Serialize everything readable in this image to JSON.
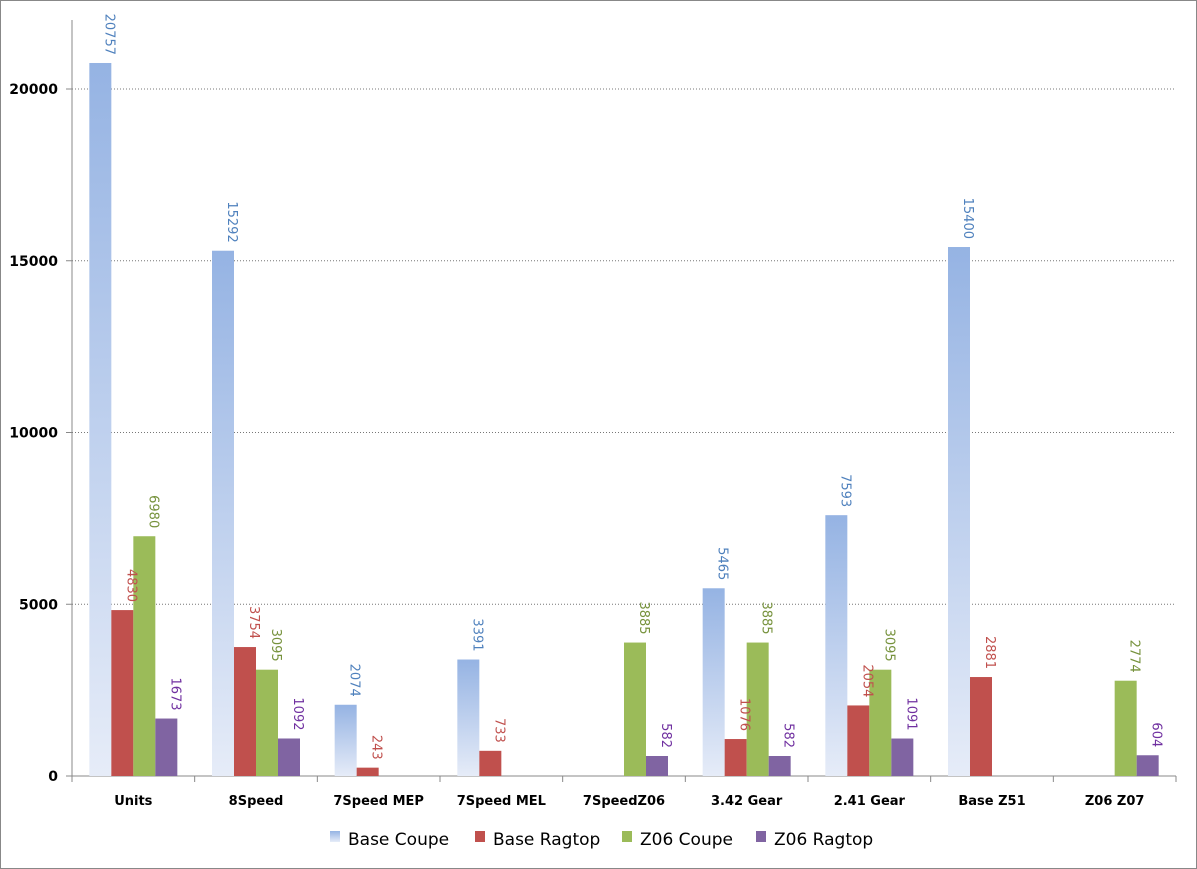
{
  "chart_data": {
    "type": "bar",
    "title": "",
    "xlabel": "",
    "ylabel": "",
    "ylim": [
      0,
      22000
    ],
    "yticks": [
      0,
      5000,
      10000,
      15000,
      20000
    ],
    "ytick_labels": [
      "0",
      "5000",
      "10000",
      "15000",
      "20000"
    ],
    "grid": true,
    "legend_position": "bottom",
    "categories": [
      "Units",
      "8Speed",
      "7Speed MEP",
      "7Speed MEL",
      "7SpeedZ06",
      "3.42 Gear",
      "2.41 Gear",
      "Base Z51",
      "Z06 Z07"
    ],
    "series": [
      {
        "name": "Base Coupe",
        "color": "#95b3e3",
        "label_color": "#4f81bd",
        "values": [
          20757,
          15292,
          2074,
          3391,
          null,
          5465,
          7593,
          15400,
          null
        ]
      },
      {
        "name": "Base Ragtop",
        "color": "#c0504d",
        "label_color": "#c0504d",
        "values": [
          4830,
          3754,
          243,
          733,
          null,
          1076,
          2054,
          2881,
          null
        ]
      },
      {
        "name": "Z06 Coupe",
        "color": "#9bbb59",
        "label_color": "#76923c",
        "values": [
          6980,
          3095,
          null,
          null,
          3885,
          3885,
          3095,
          null,
          2774
        ]
      },
      {
        "name": "Z06 Ragtop",
        "color": "#8064a2",
        "label_color": "#7030a0",
        "values": [
          1673,
          1092,
          null,
          null,
          582,
          582,
          1091,
          null,
          604
        ]
      }
    ]
  }
}
